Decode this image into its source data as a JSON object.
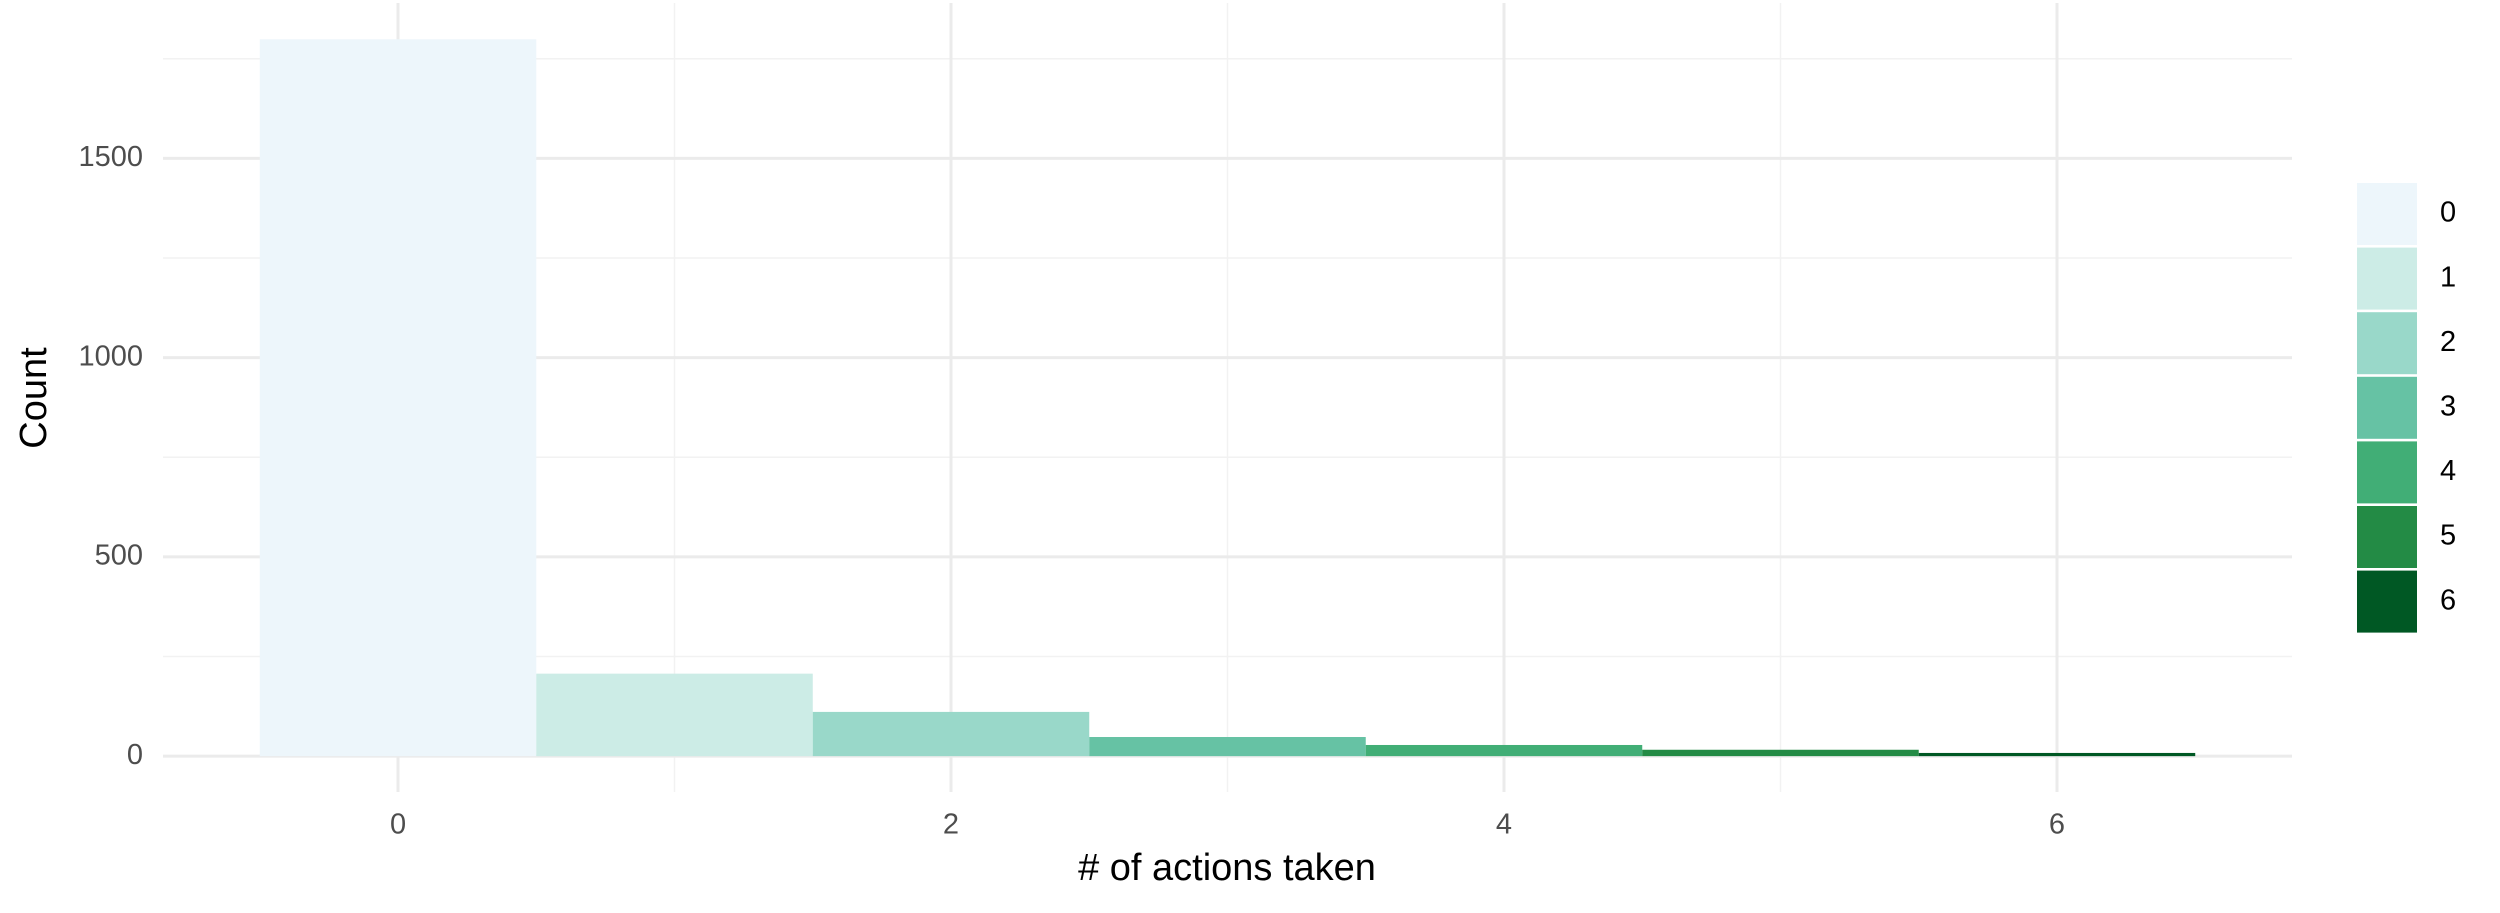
{
  "chart_data": {
    "type": "bar",
    "x": [
      0,
      1,
      2,
      3,
      4,
      5,
      6
    ],
    "values": [
      1799,
      207,
      111,
      48,
      28,
      16,
      8
    ],
    "colors": [
      "#edf6fb",
      "#ccece6",
      "#99d8c9",
      "#66c2a4",
      "#41ae76",
      "#238b45",
      "#005824"
    ],
    "xlabel": "# of actions taken",
    "ylabel": "Count",
    "xlim": [
      -0.85,
      6.85
    ],
    "xticks": [
      0,
      2,
      4,
      6
    ],
    "ylim": [
      -90,
      1890
    ],
    "yticks": [
      0,
      500,
      1000,
      1500
    ],
    "grid": true,
    "minor_grid": true,
    "legend": "right"
  }
}
